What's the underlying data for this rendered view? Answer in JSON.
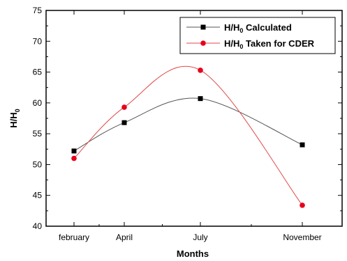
{
  "chart_data": {
    "type": "line",
    "title": "",
    "xlabel": "Months",
    "ylabel": {
      "main": "H/H",
      "sub": "0"
    },
    "categories": [
      "february",
      "April",
      "July",
      "November"
    ],
    "ylim": [
      40,
      75
    ],
    "yticks": [
      "40",
      "45",
      "50",
      "55",
      "60",
      "65",
      "70",
      "75"
    ],
    "grid": false,
    "legend_position": "top-right",
    "series": [
      {
        "name": {
          "main": "H/H",
          "sub": "0",
          "rest": " Calculated"
        },
        "marker": "square",
        "color": "#000000",
        "line_color": "#555555",
        "values": [
          52.2,
          56.8,
          60.7,
          53.2
        ]
      },
      {
        "name": {
          "main": "H/H",
          "sub": "0",
          "rest": " Taken for CDER"
        },
        "marker": "circle",
        "color": "#e8001c",
        "line_color": "#e04a4a",
        "values": [
          51.0,
          59.3,
          65.3,
          43.4
        ]
      }
    ]
  }
}
